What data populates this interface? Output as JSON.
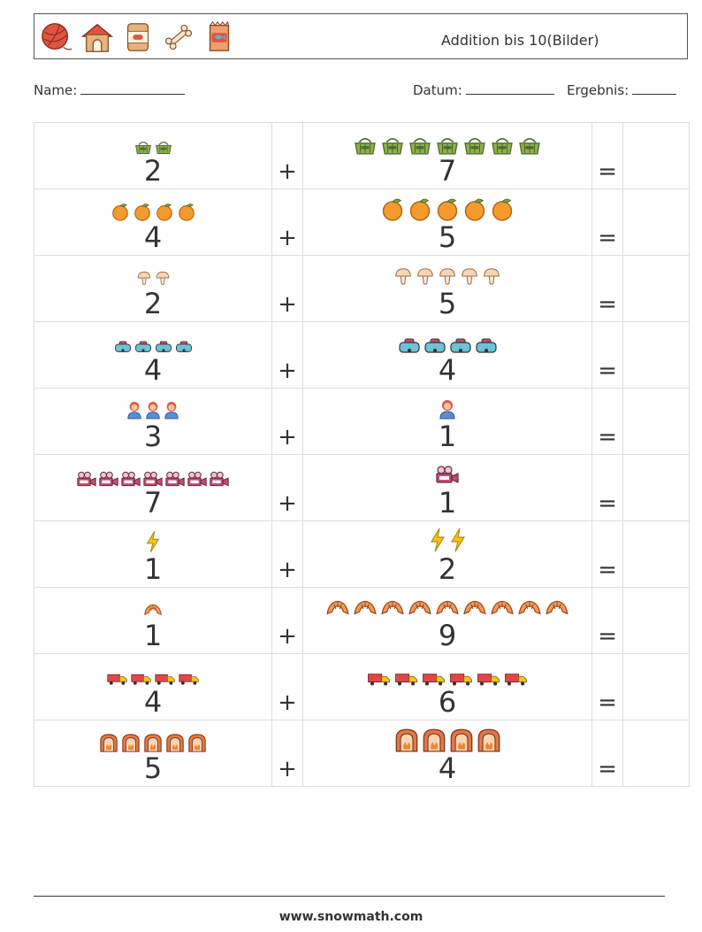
{
  "header": {
    "title": "Addition bis 10(Bilder)",
    "icons": [
      "yarn-ball-icon",
      "dog-house-icon",
      "dog-food-can-icon",
      "bone-icon",
      "pet-food-bag-icon"
    ]
  },
  "fields": {
    "name_label": "Name:",
    "date_label": "Datum:",
    "result_label": "Ergebnis:"
  },
  "operators": {
    "plus": "+",
    "equals": "="
  },
  "rows": [
    {
      "a": 2,
      "b": 7,
      "icon": "green-basket-icon"
    },
    {
      "a": 4,
      "b": 5,
      "icon": "orange-icon"
    },
    {
      "a": 2,
      "b": 5,
      "icon": "mushroom-icon"
    },
    {
      "a": 4,
      "b": 4,
      "icon": "vr-headset-icon"
    },
    {
      "a": 3,
      "b": 1,
      "icon": "person-icon"
    },
    {
      "a": 7,
      "b": 1,
      "icon": "movie-camera-icon"
    },
    {
      "a": 1,
      "b": 2,
      "icon": "lightning-icon"
    },
    {
      "a": 1,
      "b": 9,
      "icon": "croissant-icon"
    },
    {
      "a": 4,
      "b": 6,
      "icon": "truck-icon"
    },
    {
      "a": 5,
      "b": 4,
      "icon": "fireplace-icon"
    }
  ],
  "footer": {
    "text": "www.snowmath.com"
  },
  "colors": {
    "border": "#dcdcdc",
    "text": "#333333"
  }
}
